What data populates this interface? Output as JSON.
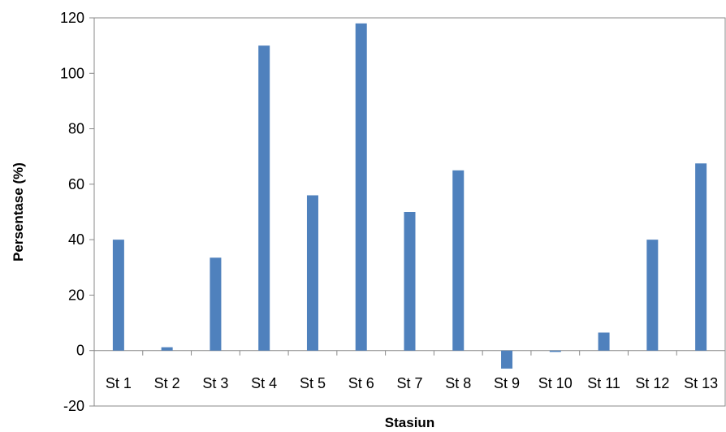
{
  "chart_data": {
    "type": "bar",
    "title": "",
    "xlabel": "Stasiun",
    "ylabel": "Persentase (%)",
    "categories": [
      "St 1",
      "St 2",
      "St 3",
      "St 4",
      "St 5",
      "St 6",
      "St 7",
      "St 8",
      "St 9",
      "St 10",
      "St 11",
      "St 12",
      "St 13"
    ],
    "series": [
      {
        "values": [
          40,
          1.2,
          33.5,
          110,
          56,
          118,
          50,
          65,
          -6.5,
          -0.5,
          6.5,
          40,
          67.5
        ],
        "color": "#4F81BD"
      }
    ],
    "ylim": [
      -20,
      120
    ],
    "yticks": [
      -20,
      0,
      20,
      40,
      60,
      80,
      100,
      120
    ],
    "ytick_labels": [
      "-20",
      "0",
      "20",
      "40",
      "60",
      "80",
      "100",
      "120"
    ],
    "grid": false,
    "legend": "none"
  }
}
